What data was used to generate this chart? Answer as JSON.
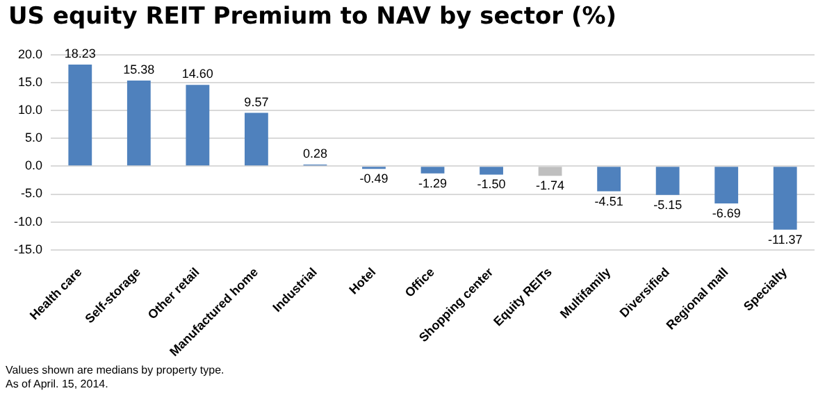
{
  "chart_data": {
    "type": "bar",
    "title": "US equity REIT Premium to NAV by sector (%)",
    "categories": [
      "Health care",
      "Self-storage",
      "Other retail",
      "Manufactured home",
      "Industrial",
      "Hotel",
      "Office",
      "Shopping center",
      "Equity REITs",
      "Multifamily",
      "Diversified",
      "Regional mall",
      "Specialty"
    ],
    "values": [
      18.23,
      15.38,
      14.6,
      9.57,
      0.28,
      -0.49,
      -1.29,
      -1.5,
      -1.74,
      -4.51,
      -5.15,
      -6.69,
      -11.37
    ],
    "colors": [
      "#4f81bd",
      "#4f81bd",
      "#4f81bd",
      "#4f81bd",
      "#4f81bd",
      "#4f81bd",
      "#4f81bd",
      "#4f81bd",
      "#bfbfbf",
      "#4f81bd",
      "#4f81bd",
      "#4f81bd",
      "#4f81bd"
    ],
    "value_labels": [
      "18.23",
      "15.38",
      "14.60",
      "9.57",
      "0.28",
      "-0.49",
      "-1.29",
      "-1.50",
      "-1.74",
      "-4.51",
      "-5.15",
      "-6.69",
      "-11.37"
    ],
    "ylim": [
      -15,
      20
    ],
    "yticks": [
      {
        "value": -15,
        "label": "-15.0"
      },
      {
        "value": -10,
        "label": "-10.0"
      },
      {
        "value": -5,
        "label": "-5.0"
      },
      {
        "value": 0,
        "label": "0.0"
      },
      {
        "value": 5,
        "label": "5.0"
      },
      {
        "value": 10,
        "label": "10.0"
      },
      {
        "value": 15,
        "label": "15.0"
      },
      {
        "value": 20,
        "label": "20.0"
      }
    ],
    "grid": "y",
    "legend": false,
    "annotations": [
      "Values shown are medians by property type.",
      "As of April. 15, 2014."
    ]
  }
}
